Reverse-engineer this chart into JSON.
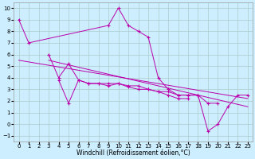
{
  "xlabel": "Windchill (Refroidissement éolien,°C)",
  "background_color": "#cceeff",
  "grid_color": "#aacccc",
  "line_color": "#bb00aa",
  "xlim": [
    -0.5,
    23.5
  ],
  "ylim": [
    -1.5,
    10.5
  ],
  "xticks": [
    0,
    1,
    2,
    3,
    4,
    5,
    6,
    7,
    8,
    9,
    10,
    11,
    12,
    13,
    14,
    15,
    16,
    17,
    18,
    19,
    20,
    21,
    22,
    23
  ],
  "yticks": [
    -1,
    0,
    1,
    2,
    3,
    4,
    5,
    6,
    7,
    8,
    9,
    10
  ],
  "series1_x": [
    0,
    1,
    9,
    10,
    11,
    12,
    13,
    14,
    15,
    16,
    17,
    18,
    19,
    20,
    21,
    22,
    23
  ],
  "series1_y": [
    9,
    7,
    8.5,
    10,
    8.5,
    8,
    7.5,
    4,
    3,
    2.5,
    2.5,
    2.5,
    -0.6,
    0,
    1.5,
    2.5,
    2.5
  ],
  "series2_x": [
    3,
    4,
    5,
    6,
    7,
    8,
    9,
    10,
    11,
    12,
    13,
    14,
    15,
    16,
    17,
    18,
    19,
    20
  ],
  "series2_y": [
    6,
    4,
    5.2,
    3.8,
    3.5,
    3.5,
    3.5,
    3.5,
    3.3,
    3.3,
    3.0,
    2.8,
    2.8,
    2.5,
    2.5,
    2.5,
    1.8,
    1.8
  ],
  "series3_x": [
    4,
    5,
    6,
    7,
    8,
    9,
    10,
    11,
    12,
    13,
    14,
    15,
    16,
    17
  ],
  "series3_y": [
    3.8,
    1.8,
    3.8,
    3.5,
    3.5,
    3.3,
    3.5,
    3.2,
    3.0,
    3.0,
    2.8,
    2.5,
    2.2,
    2.2
  ],
  "trend1_x": [
    0,
    23
  ],
  "trend1_y": [
    5.5,
    2.2
  ],
  "trend2_x": [
    3,
    23
  ],
  "trend2_y": [
    5.5,
    1.5
  ]
}
